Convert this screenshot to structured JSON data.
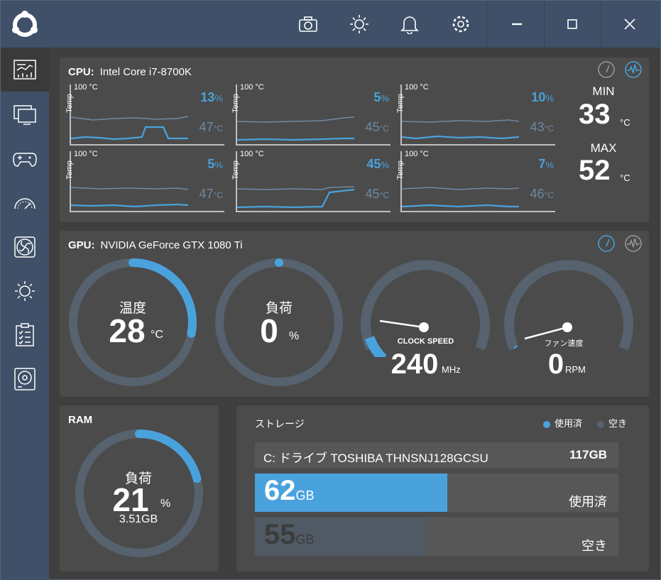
{
  "titlebar": {
    "icons": [
      "camera-icon",
      "brightness-icon",
      "bell-icon",
      "gear-icon"
    ],
    "window_controls": [
      "minimize-icon",
      "maximize-icon",
      "close-icon"
    ]
  },
  "sidebar": {
    "items": [
      {
        "icon": "dashboard-icon",
        "active": true
      },
      {
        "icon": "monitor-icon",
        "active": false
      },
      {
        "icon": "gamepad-icon",
        "active": false
      },
      {
        "icon": "speedometer-icon",
        "active": false
      },
      {
        "icon": "fan-icon",
        "active": false
      },
      {
        "icon": "light-icon",
        "active": false
      },
      {
        "icon": "checklist-icon",
        "active": false
      },
      {
        "icon": "disk-icon",
        "active": false
      }
    ]
  },
  "cpu": {
    "label": "CPU:",
    "model": "Intel Core i7-8700K",
    "view_icons": [
      "gauge-view-icon",
      "graph-view-icon"
    ],
    "cores": [
      {
        "max_label": "100 °C",
        "axis_label": "Temp",
        "load": "13",
        "temp": "47",
        "load_unit": "%",
        "temp_unit": "°C"
      },
      {
        "max_label": "100 °C",
        "axis_label": "Temp",
        "load": "5",
        "temp": "45",
        "load_unit": "%",
        "temp_unit": "°C"
      },
      {
        "max_label": "100 °C",
        "axis_label": "Temp",
        "load": "10",
        "temp": "43",
        "load_unit": "%",
        "temp_unit": "°C"
      },
      {
        "max_label": "100 °C",
        "axis_label": "Temp",
        "load": "5",
        "temp": "47",
        "load_unit": "%",
        "temp_unit": "°C"
      },
      {
        "max_label": "100 °C",
        "axis_label": "Temp",
        "load": "45",
        "temp": "45",
        "load_unit": "%",
        "temp_unit": "°C"
      },
      {
        "max_label": "100 °C",
        "axis_label": "Temp",
        "load": "7",
        "temp": "46",
        "load_unit": "%",
        "temp_unit": "°C"
      }
    ],
    "min_label": "MIN",
    "min_value": "33",
    "max_label": "MAX",
    "max_value": "52",
    "temp_unit": "°C"
  },
  "gpu": {
    "label": "GPU:",
    "model": "NVIDIA GeForce GTX 1080 Ti",
    "view_icons": [
      "gauge-view-icon",
      "graph-view-icon"
    ],
    "temp": {
      "label": "温度",
      "value": "28",
      "unit": "°C",
      "fraction": 0.28
    },
    "load": {
      "label": "負荷",
      "value": "0",
      "unit": "%",
      "fraction": 0.0
    },
    "clock": {
      "label": "CLOCK SPEED",
      "value": "240",
      "unit": "MHz",
      "fraction": 0.09
    },
    "fan": {
      "label": "ファン速度",
      "value": "0",
      "unit": "RPM",
      "fraction": 0.0
    }
  },
  "ram": {
    "label": "RAM",
    "load_label": "負荷",
    "value": "21",
    "unit": "%",
    "used": "3.51GB",
    "fraction": 0.21
  },
  "storage": {
    "label": "ストレージ",
    "legend_used": "使用済",
    "legend_free": "空き",
    "drive_name": "C: ドライブ TOSHIBA THNSNJ128GCSU",
    "drive_total": "117GB",
    "used_value": "62",
    "used_unit": "GB",
    "used_label": "使用済",
    "used_fraction": 0.53,
    "free_value": "55",
    "free_unit": "GB",
    "free_label": "空き",
    "free_fraction": 0.47
  },
  "colors": {
    "accent": "#4aa2dd",
    "track": "#56626e",
    "panel": "#4b4b4b",
    "titlebar": "#3f5068"
  }
}
